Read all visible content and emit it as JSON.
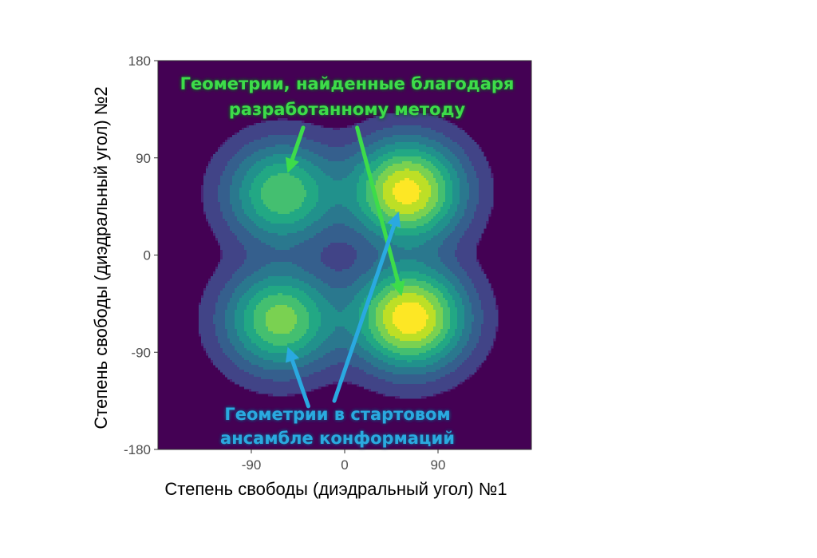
{
  "chart_data": {
    "type": "heatmap",
    "subtype": "2d-density-contour",
    "title": "",
    "xlabel": "Степень свободы (диэдральный угол) №1",
    "ylabel": "Степень свободы (диэдральный угол) №2",
    "xlim": [
      -180,
      180
    ],
    "ylim": [
      -180,
      180
    ],
    "x_ticks": [
      -90,
      0,
      90
    ],
    "y_ticks": [
      180,
      90,
      0,
      -90,
      -180
    ],
    "grid": false,
    "colormap": "viridis",
    "background_color": "#440154",
    "density_peaks": [
      {
        "x": -60,
        "y": 57,
        "relative_density": 0.62
      },
      {
        "x": -62,
        "y": -60,
        "relative_density": 0.7
      },
      {
        "x": 60,
        "y": 59,
        "relative_density": 0.95
      },
      {
        "x": 63,
        "y": -58,
        "relative_density": 1.0
      }
    ],
    "annotations": [
      {
        "text_lines": [
          "Геометрии, найденные благодаря",
          "разработанному методу"
        ],
        "color": "#3ddc4a",
        "arrows": [
          {
            "from": [
              -40,
              118
            ],
            "to": [
              -55,
              76
            ]
          },
          {
            "from": [
              12,
              118
            ],
            "to": [
              55,
              -38
            ]
          }
        ]
      },
      {
        "text_lines": [
          "Геометрии в стартовом",
          "ансамбле конформаций"
        ],
        "color": "#2aa9e0",
        "arrows": [
          {
            "from": [
              -35,
              -140
            ],
            "to": [
              -55,
              -85
            ]
          },
          {
            "from": [
              -10,
              -135
            ],
            "to": [
              52,
              40
            ]
          }
        ]
      }
    ]
  }
}
